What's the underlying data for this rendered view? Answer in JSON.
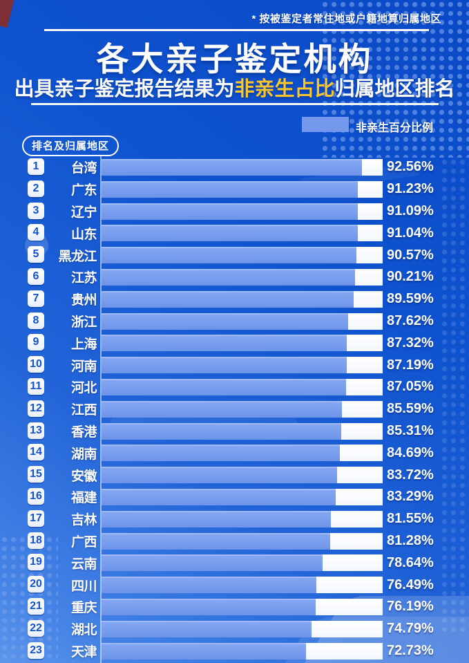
{
  "note": "* 按被鉴定者常住地或户籍地算归属地区",
  "title": "各大亲子鉴定机构",
  "subtitle": {
    "prefix": "出具亲子鉴定报告结果为",
    "highlight": "非亲生占比",
    "suffix": "归属地区排名"
  },
  "legend": {
    "label": "非亲生百分比例",
    "swatch_color": "#7499ec"
  },
  "axis_badge": "排名及归属地区",
  "colors": {
    "background_top": "#0a49c6",
    "background_bottom": "#5d95ec",
    "bar_fill": "#7499ec",
    "bar_remainder": "#ffffff",
    "highlight_text": "#fbc62c",
    "rank_number": "#1353ce"
  },
  "chart_data": {
    "type": "bar",
    "orientation": "horizontal",
    "title": "各大亲子鉴定机构 出具亲子鉴定报告结果为非亲生占比归属地区排名",
    "legend_entry": "非亲生百分比例",
    "unit": "%",
    "axis_range": [
      0,
      100
    ],
    "grid": false,
    "note": "按被鉴定者常住地或户籍地算归属地区",
    "categories": [
      "台湾",
      "广东",
      "辽宁",
      "山东",
      "黑龙江",
      "江苏",
      "贵州",
      "浙江",
      "上海",
      "河南",
      "河北",
      "江西",
      "香港",
      "湖南",
      "安徽",
      "福建",
      "吉林",
      "广西",
      "云南",
      "四川",
      "重庆",
      "湖北",
      "天津"
    ],
    "ranks": [
      1,
      2,
      3,
      4,
      5,
      6,
      7,
      8,
      9,
      10,
      11,
      12,
      13,
      14,
      15,
      16,
      17,
      18,
      19,
      20,
      21,
      22,
      23
    ],
    "values": [
      92.56,
      91.23,
      91.09,
      91.04,
      90.57,
      90.21,
      89.59,
      87.62,
      87.32,
      87.19,
      87.05,
      85.59,
      85.31,
      84.69,
      83.72,
      83.29,
      81.55,
      81.28,
      78.64,
      76.49,
      76.19,
      74.79,
      72.73
    ],
    "value_labels": [
      "92.56%",
      "91.23%",
      "91.09%",
      "91.04%",
      "90.57%",
      "90.21%",
      "89.59%",
      "87.62%",
      "87.32%",
      "87.19%",
      "87.05%",
      "85.59%",
      "85.31%",
      "84.69%",
      "83.72%",
      "83.29%",
      "81.55%",
      "81.28%",
      "78.64%",
      "76.49%",
      "76.19%",
      "74.79%",
      "72.73%"
    ]
  }
}
